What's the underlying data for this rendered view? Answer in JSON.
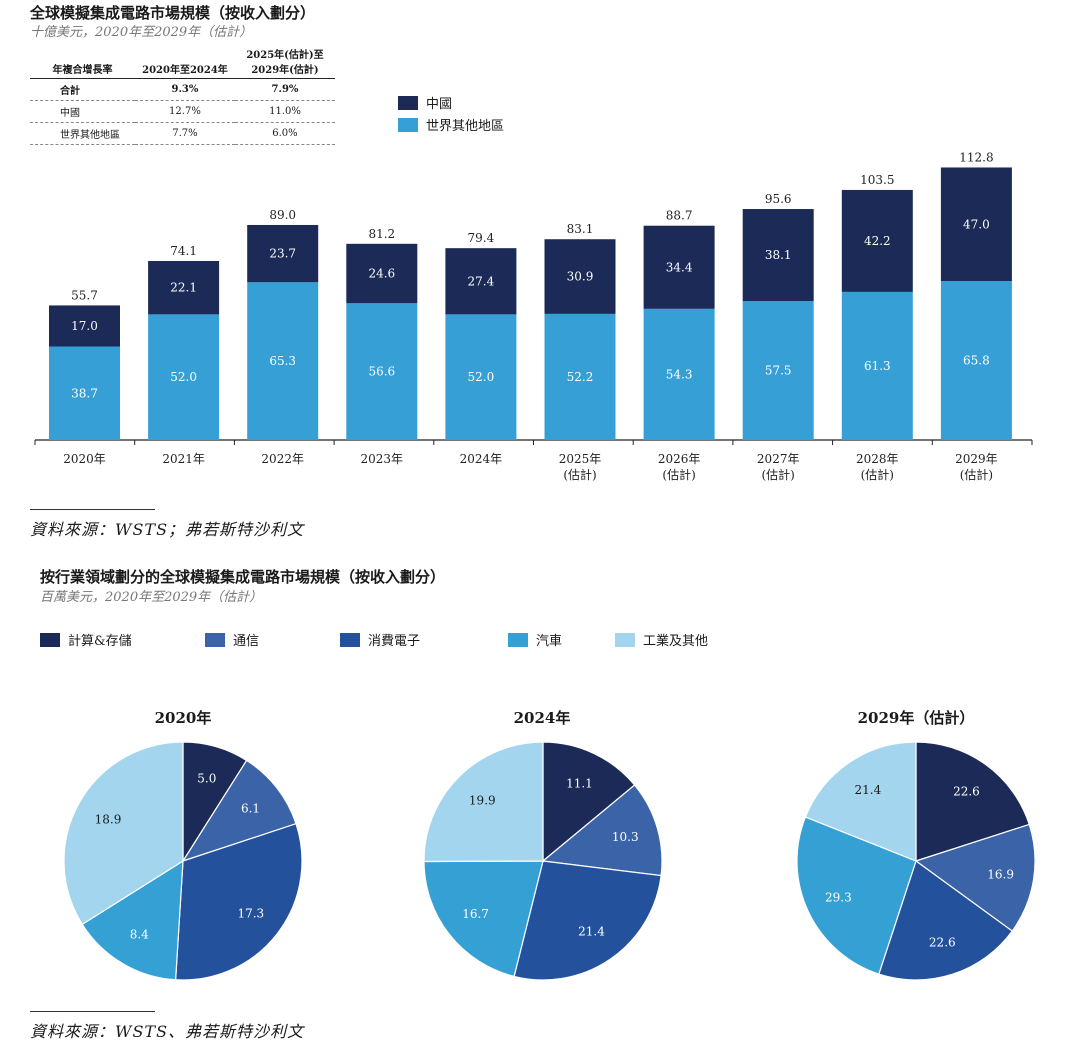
{
  "section1": {
    "title": "全球模擬集成電路市場規模（按收入劃分）",
    "subtitle": "十億美元，2020年至2029年（估計）",
    "cagr_table": {
      "headers": [
        "年複合增長率",
        "2020年至2024年",
        "2025年(估計)至 2029年(估計)"
      ],
      "rows": [
        {
          "label": "合計",
          "a": "9.3%",
          "b": "7.9%"
        },
        {
          "label": "中國",
          "a": "12.7%",
          "b": "11.0%"
        },
        {
          "label": "世界其他地區",
          "a": "7.7%",
          "b": "6.0%"
        }
      ]
    },
    "legend": [
      {
        "label": "中國",
        "color": "#1b2a56"
      },
      {
        "label": "世界其他地區",
        "color": "#36a0d6"
      }
    ],
    "source": "資料來源：WSTS；弗若斯特沙利文"
  },
  "section2": {
    "title": "按行業領域劃分的全球模擬集成電路市場規模（按收入劃分）",
    "subtitle": "百萬美元，2020年至2029年（估計）",
    "legend": [
      {
        "label": "計算&存儲",
        "color": "#1b2a56"
      },
      {
        "label": "通信",
        "color": "#3b63a8"
      },
      {
        "label": "消費電子",
        "color": "#23519c"
      },
      {
        "label": "汽車",
        "color": "#35a0d4"
      },
      {
        "label": "工業及其他",
        "color": "#a3d6ee"
      }
    ],
    "source": "資料來源：WSTS、弗若斯特沙利文"
  },
  "chart_data": [
    {
      "type": "bar",
      "stacked": true,
      "categories": [
        "2020年",
        "2021年",
        "2022年",
        "2023年",
        "2024年",
        "2025年\n(估計)",
        "2026年\n(估計)",
        "2027年\n(估計)",
        "2028年\n(估計)",
        "2029年\n(估計)"
      ],
      "series": [
        {
          "name": "世界其他地區",
          "color": "#36a0d6",
          "values": [
            38.7,
            52.0,
            65.3,
            56.6,
            52.0,
            52.2,
            54.3,
            57.5,
            61.3,
            65.8
          ],
          "labels": [
            "38.7",
            "52.0",
            "65.3",
            "56.6",
            "52.0",
            "52.2",
            "54.3",
            "57.5",
            "61.3",
            "65.8"
          ]
        },
        {
          "name": "中國",
          "color": "#1b2a56",
          "values": [
            17.0,
            22.1,
            23.7,
            24.6,
            27.4,
            30.9,
            34.4,
            38.1,
            42.2,
            47.0
          ],
          "labels": [
            "17.0",
            "22.1",
            "23.7",
            "24.6",
            "27.4",
            "30.9",
            "34.4",
            "38.1",
            "42.2",
            "47.0"
          ]
        }
      ],
      "totals": [
        "55.7",
        "74.1",
        "89.0",
        "81.2",
        "79.4",
        "83.1",
        "88.7",
        "95.6",
        "103.5",
        "112.8"
      ],
      "total_values": [
        55.7,
        74.1,
        89.0,
        81.2,
        79.4,
        83.1,
        88.7,
        95.6,
        103.5,
        112.8
      ],
      "ylim": [
        0,
        120
      ],
      "grid": false
    },
    {
      "type": "pie",
      "title": "2020年",
      "categories": [
        "計算&存儲",
        "通信",
        "消費電子",
        "汽車",
        "工業及其他"
      ],
      "values": [
        5.0,
        6.1,
        17.3,
        8.4,
        18.9
      ],
      "labels": [
        "5.0",
        "6.1",
        "17.3",
        "8.4",
        "18.9"
      ]
    },
    {
      "type": "pie",
      "title": "2024年",
      "categories": [
        "計算&存儲",
        "通信",
        "消費電子",
        "汽車",
        "工業及其他"
      ],
      "values": [
        11.1,
        10.3,
        21.4,
        16.7,
        19.9
      ],
      "labels": [
        "11.1",
        "10.3",
        "21.4",
        "16.7",
        "19.9"
      ]
    },
    {
      "type": "pie",
      "title": "2029年（估計）",
      "categories": [
        "計算&存儲",
        "通信",
        "消費電子",
        "汽車",
        "工業及其他"
      ],
      "values": [
        22.6,
        16.9,
        22.6,
        29.3,
        21.4
      ],
      "labels": [
        "22.6",
        "16.9",
        "22.6",
        "29.3",
        "21.4"
      ]
    }
  ]
}
